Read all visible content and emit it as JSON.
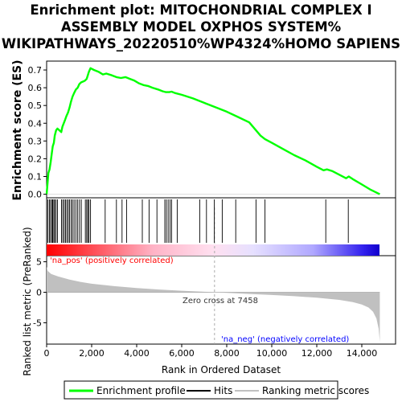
{
  "title_lines": [
    "Enrichment plot: MITOCHONDRIAL COMPLEX I",
    "ASSEMBLY MODEL OXPHOS SYSTEM%",
    "WIKIPATHWAYS_20220510%WP4324%HOMO SAPIENS"
  ],
  "colors": {
    "profile": "#00ff00",
    "hits": "#000000",
    "metric_fill": "#c0c0c0",
    "pos_text": "#ff0000",
    "neg_text": "#0000ff",
    "zero_line": "#aaaaaa"
  },
  "chart_data": {
    "type": "line",
    "title": "Enrichment plot: MITOCHONDRIAL COMPLEX I ASSEMBLY MODEL OXPHOS SYSTEM% WIKIPATHWAYS_20220510%WP4324%HOMO SAPIENS",
    "xlabel": "Rank in Ordered Dataset",
    "ylabel_top": "Enrichment score (ES)",
    "ylabel_bottom": "Ranked list metric (PreRanked)",
    "x_range": [
      0,
      15500
    ],
    "x_max_rank": 14800,
    "x_ticks": [
      0,
      2000,
      4000,
      6000,
      8000,
      10000,
      12000,
      14000
    ],
    "x_tick_labels": [
      "0",
      "2,000",
      "4,000",
      "6,000",
      "8,000",
      "10,000",
      "12,000",
      "14,000"
    ],
    "es_range": [
      -0.02,
      0.75
    ],
    "es_ticks": [
      0.0,
      0.1,
      0.2,
      0.3,
      0.4,
      0.5,
      0.6,
      0.7
    ],
    "es_tick_labels": [
      "0.0",
      "0.1",
      "0.2",
      "0.3",
      "0.4",
      "0.5",
      "0.6",
      "0.7"
    ],
    "metric_range": [
      -8.5,
      6.0
    ],
    "metric_ticks": [
      5,
      0,
      -5
    ],
    "metric_tick_labels": [
      "5",
      "0",
      "-5"
    ],
    "es_profile": [
      [
        0,
        0.0
      ],
      [
        40,
        0.06
      ],
      [
        80,
        0.12
      ],
      [
        130,
        0.14
      ],
      [
        180,
        0.18
      ],
      [
        230,
        0.23
      ],
      [
        270,
        0.27
      ],
      [
        320,
        0.29
      ],
      [
        360,
        0.33
      ],
      [
        420,
        0.36
      ],
      [
        480,
        0.37
      ],
      [
        650,
        0.35
      ],
      [
        700,
        0.38
      ],
      [
        760,
        0.4
      ],
      [
        820,
        0.42
      ],
      [
        880,
        0.44
      ],
      [
        950,
        0.46
      ],
      [
        1020,
        0.49
      ],
      [
        1080,
        0.52
      ],
      [
        1150,
        0.55
      ],
      [
        1220,
        0.57
      ],
      [
        1300,
        0.59
      ],
      [
        1380,
        0.6
      ],
      [
        1450,
        0.62
      ],
      [
        1530,
        0.63
      ],
      [
        1620,
        0.635
      ],
      [
        1700,
        0.64
      ],
      [
        1780,
        0.65
      ],
      [
        1830,
        0.67
      ],
      [
        1880,
        0.69
      ],
      [
        1950,
        0.71
      ],
      [
        2100,
        0.7
      ],
      [
        2300,
        0.69
      ],
      [
        2500,
        0.675
      ],
      [
        2650,
        0.68
      ],
      [
        2900,
        0.67
      ],
      [
        3100,
        0.66
      ],
      [
        3300,
        0.655
      ],
      [
        3500,
        0.66
      ],
      [
        3700,
        0.65
      ],
      [
        3900,
        0.64
      ],
      [
        4100,
        0.625
      ],
      [
        4300,
        0.615
      ],
      [
        4500,
        0.61
      ],
      [
        4700,
        0.6
      ],
      [
        4950,
        0.59
      ],
      [
        5150,
        0.58
      ],
      [
        5300,
        0.575
      ],
      [
        5450,
        0.575
      ],
      [
        5550,
        0.578
      ],
      [
        5700,
        0.57
      ],
      [
        6000,
        0.56
      ],
      [
        6500,
        0.54
      ],
      [
        7000,
        0.515
      ],
      [
        7500,
        0.49
      ],
      [
        8000,
        0.465
      ],
      [
        8500,
        0.435
      ],
      [
        9000,
        0.405
      ],
      [
        9500,
        0.33
      ],
      [
        9700,
        0.31
      ],
      [
        10000,
        0.29
      ],
      [
        10500,
        0.255
      ],
      [
        11000,
        0.22
      ],
      [
        11500,
        0.19
      ],
      [
        12000,
        0.155
      ],
      [
        12300,
        0.135
      ],
      [
        12450,
        0.14
      ],
      [
        12700,
        0.13
      ],
      [
        13000,
        0.11
      ],
      [
        13300,
        0.09
      ],
      [
        13420,
        0.1
      ],
      [
        13600,
        0.085
      ],
      [
        14000,
        0.055
      ],
      [
        14400,
        0.025
      ],
      [
        14800,
        0.0
      ]
    ],
    "hits": [
      50,
      120,
      170,
      230,
      270,
      320,
      360,
      420,
      480,
      660,
      720,
      780,
      840,
      900,
      960,
      1020,
      1090,
      1150,
      1220,
      1300,
      1380,
      1460,
      1540,
      1720,
      1780,
      1830,
      1880,
      1950,
      2600,
      3100,
      3350,
      3550,
      4250,
      4550,
      4900,
      5250,
      5320,
      5400,
      5480,
      5550,
      5800,
      6800,
      7100,
      7450,
      7800,
      8400,
      9300,
      9700,
      12400,
      13400
    ],
    "metric_curve": [
      [
        0,
        4.2
      ],
      [
        50,
        3.5
      ],
      [
        200,
        3.0
      ],
      [
        500,
        2.6
      ],
      [
        1000,
        2.1
      ],
      [
        1500,
        1.7
      ],
      [
        2000,
        1.4
      ],
      [
        3000,
        1.0
      ],
      [
        4000,
        0.7
      ],
      [
        5000,
        0.45
      ],
      [
        6000,
        0.25
      ],
      [
        7000,
        0.08
      ],
      [
        7458,
        0.0
      ],
      [
        8000,
        -0.1
      ],
      [
        9000,
        -0.28
      ],
      [
        10000,
        -0.45
      ],
      [
        11000,
        -0.65
      ],
      [
        12000,
        -0.9
      ],
      [
        13000,
        -1.25
      ],
      [
        13600,
        -1.6
      ],
      [
        14000,
        -2.0
      ],
      [
        14300,
        -2.5
      ],
      [
        14500,
        -3.2
      ],
      [
        14650,
        -4.3
      ],
      [
        14750,
        -6.0
      ],
      [
        14800,
        -8.1
      ]
    ],
    "annotations": {
      "zero_cross": "Zero cross at 7458",
      "zero_cross_rank": 7458,
      "pos_label": "'na_pos' (positively correlated)",
      "neg_label": "'na_neg' (negatively correlated)"
    },
    "legend": {
      "placement": "bottom",
      "items": [
        "Enrichment profile",
        "Hits",
        "Ranking metric scores"
      ]
    }
  }
}
